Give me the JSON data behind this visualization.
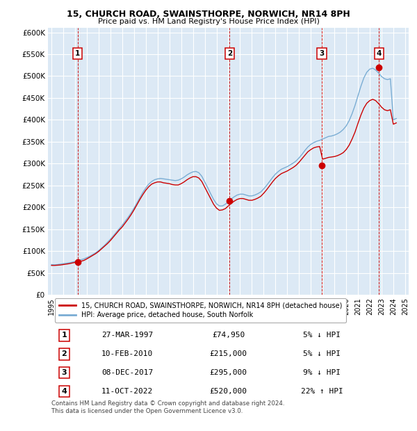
{
  "title": "15, CHURCH ROAD, SWAINSTHORPE, NORWICH, NR14 8PH",
  "subtitle": "Price paid vs. HM Land Registry's House Price Index (HPI)",
  "fig_bg_color": "#ffffff",
  "plot_bg_color": "#dce9f5",
  "ylim": [
    0,
    610000
  ],
  "yticks": [
    0,
    50000,
    100000,
    150000,
    200000,
    250000,
    300000,
    350000,
    400000,
    450000,
    500000,
    550000,
    600000
  ],
  "ytick_labels": [
    "£0",
    "£50K",
    "£100K",
    "£150K",
    "£200K",
    "£250K",
    "£300K",
    "£350K",
    "£400K",
    "£450K",
    "£500K",
    "£550K",
    "£600K"
  ],
  "xlim_start": 1994.7,
  "xlim_end": 2025.3,
  "sale_dates": [
    1997.23,
    2010.11,
    2017.93,
    2022.78
  ],
  "sale_prices": [
    74950,
    215000,
    295000,
    520000
  ],
  "sale_labels": [
    "1",
    "2",
    "3",
    "4"
  ],
  "hpi_line_color": "#7aadd4",
  "price_line_color": "#cc0000",
  "dashed_line_color": "#cc0000",
  "legend_entries": [
    "15, CHURCH ROAD, SWAINSTHORPE, NORWICH, NR14 8PH (detached house)",
    "HPI: Average price, detached house, South Norfolk"
  ],
  "table_rows": [
    [
      "1",
      "27-MAR-1997",
      "£74,950",
      "5% ↓ HPI"
    ],
    [
      "2",
      "10-FEB-2010",
      "£215,000",
      "5% ↓ HPI"
    ],
    [
      "3",
      "08-DEC-2017",
      "£295,000",
      "9% ↓ HPI"
    ],
    [
      "4",
      "11-OCT-2022",
      "£520,000",
      "22% ↑ HPI"
    ]
  ],
  "footer": "Contains HM Land Registry data © Crown copyright and database right 2024.\nThis data is licensed under the Open Government Licence v3.0.",
  "hpi_years": [
    1995.0,
    1995.25,
    1995.5,
    1995.75,
    1996.0,
    1996.25,
    1996.5,
    1996.75,
    1997.0,
    1997.25,
    1997.5,
    1997.75,
    1998.0,
    1998.25,
    1998.5,
    1998.75,
    1999.0,
    1999.25,
    1999.5,
    1999.75,
    2000.0,
    2000.25,
    2000.5,
    2000.75,
    2001.0,
    2001.25,
    2001.5,
    2001.75,
    2002.0,
    2002.25,
    2002.5,
    2002.75,
    2003.0,
    2003.25,
    2003.5,
    2003.75,
    2004.0,
    2004.25,
    2004.5,
    2004.75,
    2005.0,
    2005.25,
    2005.5,
    2005.75,
    2006.0,
    2006.25,
    2006.5,
    2006.75,
    2007.0,
    2007.25,
    2007.5,
    2007.75,
    2008.0,
    2008.25,
    2008.5,
    2008.75,
    2009.0,
    2009.25,
    2009.5,
    2009.75,
    2010.0,
    2010.25,
    2010.5,
    2010.75,
    2011.0,
    2011.25,
    2011.5,
    2011.75,
    2012.0,
    2012.25,
    2012.5,
    2012.75,
    2013.0,
    2013.25,
    2013.5,
    2013.75,
    2014.0,
    2014.25,
    2014.5,
    2014.75,
    2015.0,
    2015.25,
    2015.5,
    2015.75,
    2016.0,
    2016.25,
    2016.5,
    2016.75,
    2017.0,
    2017.25,
    2017.5,
    2017.75,
    2018.0,
    2018.25,
    2018.5,
    2018.75,
    2019.0,
    2019.25,
    2019.5,
    2019.75,
    2020.0,
    2020.25,
    2020.5,
    2020.75,
    2021.0,
    2021.25,
    2021.5,
    2021.75,
    2022.0,
    2022.25,
    2022.5,
    2022.75,
    2023.0,
    2023.25,
    2023.5,
    2023.75,
    2024.0,
    2024.25
  ],
  "hpi_values": [
    69000,
    68500,
    69000,
    70000,
    71000,
    72000,
    73000,
    74500,
    76000,
    78000,
    80000,
    82000,
    85000,
    88000,
    92000,
    96000,
    101000,
    107000,
    113000,
    120000,
    127000,
    135000,
    143000,
    151000,
    159000,
    168000,
    177000,
    187000,
    198000,
    210000,
    222000,
    234000,
    244000,
    253000,
    259000,
    263000,
    265000,
    266000,
    265000,
    264000,
    263000,
    262000,
    261000,
    262000,
    265000,
    269000,
    274000,
    278000,
    281000,
    282000,
    279000,
    271000,
    258000,
    245000,
    231000,
    218000,
    208000,
    203000,
    203000,
    207000,
    213000,
    219000,
    224000,
    228000,
    230000,
    230000,
    228000,
    226000,
    226000,
    228000,
    231000,
    235000,
    242000,
    250000,
    259000,
    268000,
    276000,
    282000,
    287000,
    290000,
    293000,
    297000,
    301000,
    306000,
    313000,
    321000,
    330000,
    338000,
    344000,
    348000,
    351000,
    353000,
    356000,
    359000,
    362000,
    363000,
    365000,
    368000,
    372000,
    378000,
    386000,
    398000,
    414000,
    433000,
    455000,
    477000,
    496000,
    509000,
    516000,
    518000,
    514000,
    507000,
    499000,
    494000,
    492000,
    494000,
    400000,
    403000
  ],
  "price_years": [
    1995.0,
    1995.25,
    1995.5,
    1995.75,
    1996.0,
    1996.25,
    1996.5,
    1996.75,
    1997.0,
    1997.25,
    1997.5,
    1997.75,
    1998.0,
    1998.25,
    1998.5,
    1998.75,
    1999.0,
    1999.25,
    1999.5,
    1999.75,
    2000.0,
    2000.25,
    2000.5,
    2000.75,
    2001.0,
    2001.25,
    2001.5,
    2001.75,
    2002.0,
    2002.25,
    2002.5,
    2002.75,
    2003.0,
    2003.25,
    2003.5,
    2003.75,
    2004.0,
    2004.25,
    2004.5,
    2004.75,
    2005.0,
    2005.25,
    2005.5,
    2005.75,
    2006.0,
    2006.25,
    2006.5,
    2006.75,
    2007.0,
    2007.25,
    2007.5,
    2007.75,
    2008.0,
    2008.25,
    2008.5,
    2008.75,
    2009.0,
    2009.25,
    2009.5,
    2009.75,
    2010.0,
    2010.25,
    2010.5,
    2010.75,
    2011.0,
    2011.25,
    2011.5,
    2011.75,
    2012.0,
    2012.25,
    2012.5,
    2012.75,
    2013.0,
    2013.25,
    2013.5,
    2013.75,
    2014.0,
    2014.25,
    2014.5,
    2014.75,
    2015.0,
    2015.25,
    2015.5,
    2015.75,
    2016.0,
    2016.25,
    2016.5,
    2016.75,
    2017.0,
    2017.25,
    2017.5,
    2017.75,
    2018.0,
    2018.25,
    2018.5,
    2018.75,
    2019.0,
    2019.25,
    2019.5,
    2019.75,
    2020.0,
    2020.25,
    2020.5,
    2020.75,
    2021.0,
    2021.25,
    2021.5,
    2021.75,
    2022.0,
    2022.25,
    2022.5,
    2022.75,
    2023.0,
    2023.25,
    2023.5,
    2023.75,
    2024.0,
    2024.25
  ],
  "price_values": [
    67000,
    67000,
    67500,
    68000,
    69000,
    70000,
    71000,
    72500,
    74000,
    75000,
    76500,
    78500,
    82000,
    86000,
    90000,
    94000,
    99000,
    105000,
    111000,
    117000,
    124000,
    132000,
    140000,
    148000,
    155000,
    164000,
    173000,
    183000,
    194000,
    206000,
    218000,
    229000,
    239000,
    247000,
    253000,
    256000,
    258000,
    258000,
    256000,
    255000,
    254000,
    252000,
    251000,
    251000,
    254000,
    258000,
    263000,
    267000,
    270000,
    270000,
    267000,
    259000,
    246000,
    233000,
    220000,
    207000,
    198000,
    193000,
    194000,
    197000,
    203000,
    209000,
    214000,
    218000,
    220000,
    220000,
    218000,
    216000,
    216000,
    218000,
    221000,
    225000,
    232000,
    240000,
    249000,
    258000,
    266000,
    272000,
    277000,
    280000,
    283000,
    287000,
    291000,
    296000,
    303000,
    311000,
    319000,
    327000,
    332000,
    336000,
    338000,
    339000,
    310000,
    312000,
    314000,
    315000,
    316000,
    318000,
    321000,
    325000,
    332000,
    342000,
    356000,
    372000,
    392000,
    411000,
    427000,
    438000,
    444000,
    447000,
    444000,
    437000,
    429000,
    423000,
    421000,
    423000,
    390000,
    393000
  ]
}
